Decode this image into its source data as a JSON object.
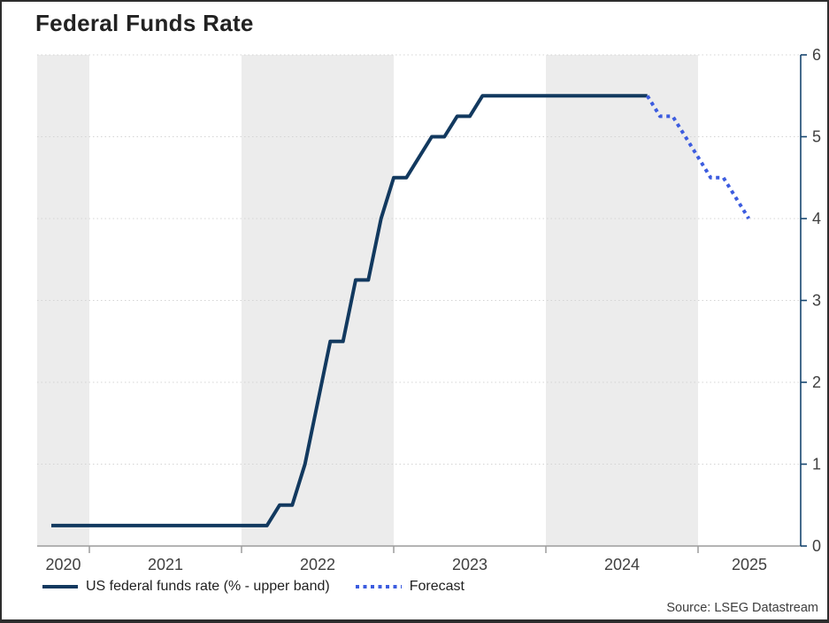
{
  "title": "Federal Funds Rate",
  "source": "Source: LSEG Datastream",
  "legend": [
    {
      "label": "US federal funds rate (% - upper band)",
      "style": "solid"
    },
    {
      "label": "Forecast",
      "style": "dotted"
    }
  ],
  "colors": {
    "history_line": "#12395F",
    "forecast_line": "#3C5CDF",
    "year_band": "#ECECEC",
    "gridline": "#D4D4D4",
    "x_axis": "#9C9C9C",
    "y_axis": "#17466F",
    "tick_label": "#404040"
  },
  "chart_data": {
    "type": "line",
    "title": "Federal Funds Rate",
    "xlabel": "",
    "ylabel": "",
    "ylim": [
      0,
      6
    ],
    "y_ticks": [
      0,
      1,
      2,
      3,
      4,
      5,
      6
    ],
    "x_ticks": [
      "2020",
      "2021",
      "2022",
      "2023",
      "2024",
      "2025"
    ],
    "x_range": [
      "2020-08",
      "2025-08"
    ],
    "grid": "horizontal-dotted",
    "legend_position": "bottom-left",
    "shaded_years": [
      2020,
      2022,
      2024
    ],
    "series": [
      {
        "name": "US federal funds rate (% - upper band)",
        "style": "solid",
        "color": "#12395F",
        "points": [
          [
            "2020-09",
            0.25
          ],
          [
            "2020-10",
            0.25
          ],
          [
            "2020-11",
            0.25
          ],
          [
            "2020-12",
            0.25
          ],
          [
            "2021-01",
            0.25
          ],
          [
            "2021-02",
            0.25
          ],
          [
            "2021-03",
            0.25
          ],
          [
            "2021-04",
            0.25
          ],
          [
            "2021-05",
            0.25
          ],
          [
            "2021-06",
            0.25
          ],
          [
            "2021-07",
            0.25
          ],
          [
            "2021-08",
            0.25
          ],
          [
            "2021-09",
            0.25
          ],
          [
            "2021-10",
            0.25
          ],
          [
            "2021-11",
            0.25
          ],
          [
            "2021-12",
            0.25
          ],
          [
            "2022-01",
            0.25
          ],
          [
            "2022-02",
            0.25
          ],
          [
            "2022-03",
            0.5
          ],
          [
            "2022-04",
            0.5
          ],
          [
            "2022-05",
            1.0
          ],
          [
            "2022-06",
            1.75
          ],
          [
            "2022-07",
            2.5
          ],
          [
            "2022-08",
            2.5
          ],
          [
            "2022-09",
            3.25
          ],
          [
            "2022-10",
            3.25
          ],
          [
            "2022-11",
            4.0
          ],
          [
            "2022-12",
            4.5
          ],
          [
            "2023-01",
            4.5
          ],
          [
            "2023-02",
            4.75
          ],
          [
            "2023-03",
            5.0
          ],
          [
            "2023-04",
            5.0
          ],
          [
            "2023-05",
            5.25
          ],
          [
            "2023-06",
            5.25
          ],
          [
            "2023-07",
            5.5
          ],
          [
            "2023-08",
            5.5
          ],
          [
            "2023-09",
            5.5
          ],
          [
            "2023-10",
            5.5
          ],
          [
            "2023-11",
            5.5
          ],
          [
            "2023-12",
            5.5
          ],
          [
            "2024-01",
            5.5
          ],
          [
            "2024-02",
            5.5
          ],
          [
            "2024-03",
            5.5
          ],
          [
            "2024-04",
            5.5
          ],
          [
            "2024-05",
            5.5
          ],
          [
            "2024-06",
            5.5
          ],
          [
            "2024-07",
            5.5
          ],
          [
            "2024-08",
            5.5
          ]
        ]
      },
      {
        "name": "Forecast",
        "style": "dotted",
        "color": "#3C5CDF",
        "points": [
          [
            "2024-08",
            5.5
          ],
          [
            "2024-09",
            5.25
          ],
          [
            "2024-10",
            5.25
          ],
          [
            "2024-11",
            5.0
          ],
          [
            "2024-12",
            4.75
          ],
          [
            "2025-01",
            4.5
          ],
          [
            "2025-02",
            4.5
          ],
          [
            "2025-03",
            4.25
          ],
          [
            "2025-04",
            4.0
          ]
        ]
      }
    ]
  }
}
